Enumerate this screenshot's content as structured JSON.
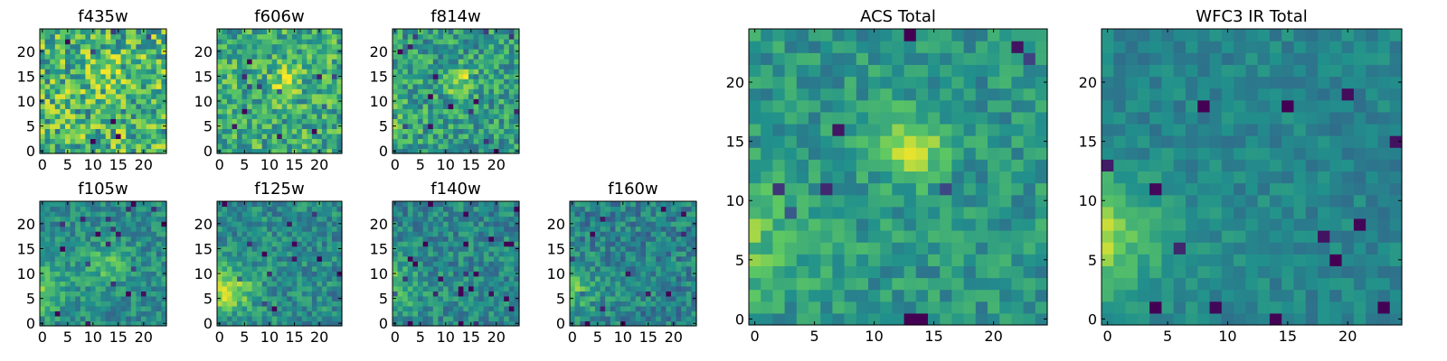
{
  "colormap": {
    "name": "viridis",
    "stops": [
      "#440154",
      "#3b528b",
      "#21918c",
      "#5ec962",
      "#fde725"
    ]
  },
  "chart_data": [
    {
      "type": "heatmap",
      "title": "f435w",
      "size": 25,
      "seed": 11,
      "xticks": [
        0,
        5,
        10,
        15,
        20
      ],
      "yticks": [
        0,
        5,
        10,
        15,
        20
      ],
      "noise": 0.3,
      "blobs": [
        {
          "cx": 13,
          "cy": 15,
          "r": 2.5,
          "a": 0.15
        }
      ],
      "edge": 0.0,
      "base": 0.66
    },
    {
      "type": "heatmap",
      "title": "f606w",
      "size": 25,
      "seed": 23,
      "xticks": [
        0,
        5,
        10,
        15,
        20
      ],
      "yticks": [
        0,
        5,
        10,
        15,
        20
      ],
      "noise": 0.24,
      "blobs": [
        {
          "cx": 13,
          "cy": 14,
          "r": 2.2,
          "a": 0.25
        }
      ],
      "edge": 0.05,
      "base": 0.62
    },
    {
      "type": "heatmap",
      "title": "f814w",
      "size": 25,
      "seed": 37,
      "xticks": [
        0,
        5,
        10,
        15,
        20
      ],
      "yticks": [
        0,
        5,
        10,
        15,
        20
      ],
      "noise": 0.22,
      "blobs": [
        {
          "cx": 13,
          "cy": 14,
          "r": 2.0,
          "a": 0.3
        }
      ],
      "edge": 0.15,
      "base": 0.55
    },
    {
      "type": "heatmap",
      "title": "f105w",
      "size": 25,
      "seed": 41,
      "xticks": [
        0,
        5,
        10,
        15,
        20
      ],
      "yticks": [
        0,
        5,
        10,
        15,
        20
      ],
      "noise": 0.15,
      "blobs": [
        {
          "cx": 13,
          "cy": 12,
          "r": 3.0,
          "a": 0.2
        }
      ],
      "edge": 0.3,
      "base": 0.48
    },
    {
      "type": "heatmap",
      "title": "f125w",
      "size": 25,
      "seed": 53,
      "xticks": [
        0,
        5,
        10,
        15,
        20
      ],
      "yticks": [
        0,
        5,
        10,
        15,
        20
      ],
      "noise": 0.16,
      "blobs": [
        {
          "cx": 3,
          "cy": 7,
          "r": 3.0,
          "a": 0.2
        }
      ],
      "edge": 0.3,
      "base": 0.48
    },
    {
      "type": "heatmap",
      "title": "f140w",
      "size": 25,
      "seed": 67,
      "xticks": [
        0,
        5,
        10,
        15,
        20
      ],
      "yticks": [
        0,
        5,
        10,
        15,
        20
      ],
      "noise": 0.16,
      "blobs": [],
      "edge": 0.32,
      "base": 0.46
    },
    {
      "type": "heatmap",
      "title": "f160w",
      "size": 25,
      "seed": 79,
      "xticks": [
        0,
        5,
        10,
        15,
        20
      ],
      "yticks": [
        0,
        5,
        10,
        15,
        20
      ],
      "noise": 0.17,
      "blobs": [],
      "edge": 0.35,
      "base": 0.44
    },
    {
      "type": "heatmap",
      "title": "ACS Total",
      "size": 25,
      "seed": 97,
      "xticks": [
        0,
        5,
        10,
        15,
        20
      ],
      "yticks": [
        0,
        5,
        10,
        15,
        20
      ],
      "noise": 0.14,
      "blobs": [
        {
          "cx": 13,
          "cy": 14.5,
          "r": 2.0,
          "a": 0.35
        }
      ],
      "edge": 0.22,
      "base": 0.52
    },
    {
      "type": "heatmap",
      "title": "WFC3 IR Total",
      "size": 25,
      "seed": 131,
      "xticks": [
        0,
        5,
        10,
        15,
        20
      ],
      "yticks": [
        0,
        5,
        10,
        15,
        20
      ],
      "noise": 0.09,
      "blobs": [],
      "edge": 0.4,
      "base": 0.45
    }
  ]
}
